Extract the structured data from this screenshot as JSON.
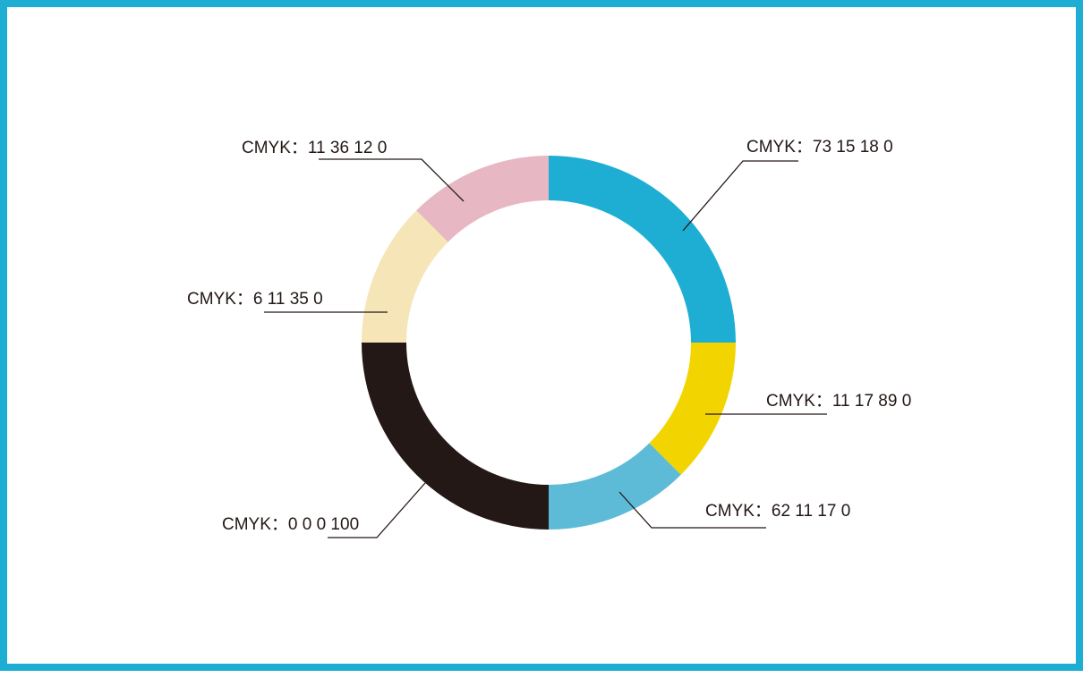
{
  "chart_data": {
    "type": "pie",
    "donut": true,
    "slices": [
      {
        "label": "CMYK：73 15 18 0",
        "value": 25,
        "color": "#1eaed4"
      },
      {
        "label": "CMYK：11 17 89 0",
        "value": 12.5,
        "color": "#f2d500"
      },
      {
        "label": "CMYK：62 11 17 0",
        "value": 12.5,
        "color": "#5ebbd7"
      },
      {
        "label": "CMYK：0 0 0 100",
        "value": 25,
        "color": "#231816"
      },
      {
        "label": "CMYK：6 11 35 0",
        "value": 12.5,
        "color": "#f6e5b6"
      },
      {
        "label": "CMYK：11 36 12 0",
        "value": 12.5,
        "color": "#e7b7c4"
      }
    ]
  },
  "colors": {
    "border": "#1eaed4",
    "background": "#ffffff",
    "text": "#231816"
  }
}
